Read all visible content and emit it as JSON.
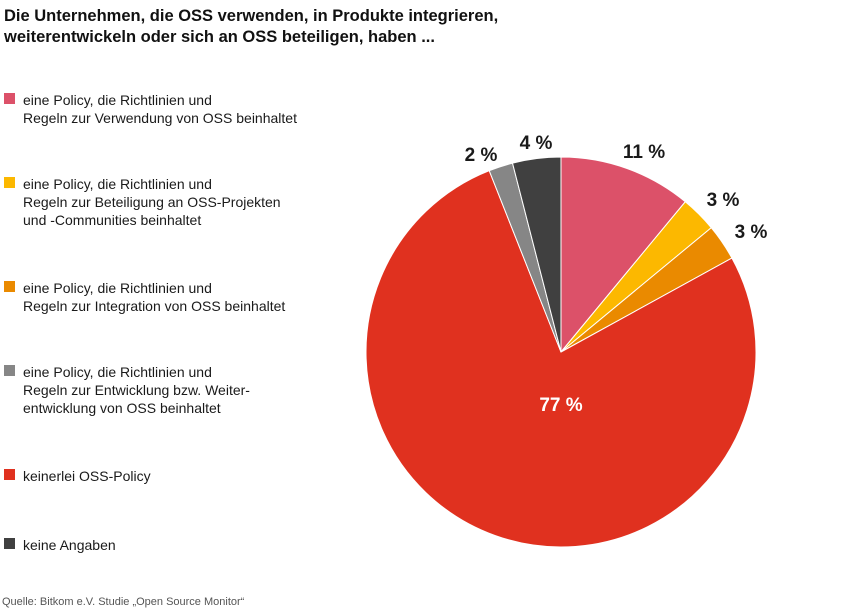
{
  "title": {
    "line1": "Die Unternehmen, die OSS verwenden, in Produkte integrieren,",
    "line2": "weiterentwickeln oder sich an OSS beteiligen, haben ..."
  },
  "source": "Quelle: Bitkom e.V. Studie „Open Source Monitor“",
  "chart_data": {
    "type": "pie",
    "title": "Die Unternehmen, die OSS verwenden, in Produkte integrieren, weiterentwickeln oder sich an OSS beteiligen, haben ...",
    "start_angle": "12 o'clock",
    "direction": "clockwise",
    "slices": [
      {
        "label": "eine Policy, die Richtlinien und Regeln zur Verwendung von OSS beinhaltet",
        "legend_lines": [
          "eine Policy, die Richtlinien und",
          "Regeln zur Verwendung von OSS beinhaltet"
        ],
        "value": 11,
        "value_label": "11 %",
        "color": "#dc5169"
      },
      {
        "label": "eine Policy, die Richtlinien und Regeln zur Beteiligung an OSS-Projekten und -Communities beinhaltet",
        "legend_lines": [
          "eine Policy, die Richtlinien und",
          "Regeln zur Beteiligung an OSS-Projekten",
          "und -Communities beinhaltet"
        ],
        "value": 3,
        "value_label": "3 %",
        "color": "#fcb800"
      },
      {
        "label": "eine Policy, die Richtlinien und Regeln zur Integration von OSS beinhaltet",
        "legend_lines": [
          "eine Policy, die Richtlinien und",
          "Regeln zur Integration von OSS beinhaltet"
        ],
        "value": 3,
        "value_label": "3 %",
        "color": "#ea8a00"
      },
      {
        "label": "keinerlei OSS-Policy",
        "legend_lines": [
          "keinerlei OSS-Policy"
        ],
        "value": 77,
        "value_label": "77 %",
        "color": "#e0311f"
      },
      {
        "label": "eine Policy, die Richtlinien und Regeln zur Entwicklung bzw. Weiterentwicklung von OSS beinhaltet",
        "legend_lines": [
          "eine Policy, die Richtlinien und",
          "Regeln zur Entwicklung bzw. Weiter-",
          "entwicklung von OSS beinhaltet"
        ],
        "value": 2,
        "value_label": "2 %",
        "color": "#868686"
      },
      {
        "label": "keine Angaben",
        "legend_lines": [
          "keine Angaben"
        ],
        "value": 4,
        "value_label": "4 %",
        "color": "#404040"
      }
    ],
    "legend": {
      "placement": "left",
      "order": [
        0,
        1,
        2,
        4,
        3,
        5
      ]
    }
  }
}
